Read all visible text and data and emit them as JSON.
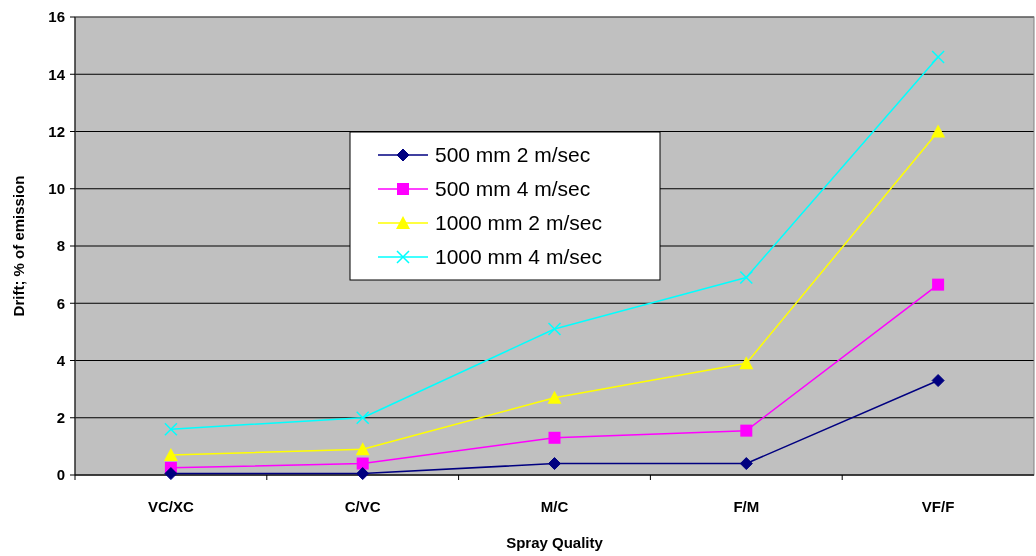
{
  "chart_data": {
    "type": "line",
    "xlabel": "Spray Quality",
    "ylabel": "Drift; % of emission",
    "categories": [
      "VC/XC",
      "C/VC",
      "M/C",
      "F/M",
      "VF/F"
    ],
    "ylim": [
      0,
      16
    ],
    "yticks": [
      0,
      2,
      4,
      6,
      8,
      10,
      12,
      14,
      16
    ],
    "grid": "y",
    "legend": "top",
    "series": [
      {
        "name": "500 mm 2 m/sec",
        "color": "#000080",
        "marker": "diamond",
        "values": [
          0.05,
          0.05,
          0.4,
          0.4,
          3.3
        ]
      },
      {
        "name": "500 mm 4 m/sec",
        "color": "#ff00ff",
        "marker": "square",
        "values": [
          0.25,
          0.4,
          1.3,
          1.55,
          6.65
        ]
      },
      {
        "name": "1000 mm 2 m/sec",
        "color": "#ffff00",
        "marker": "triangle",
        "values": [
          0.7,
          0.9,
          2.7,
          3.9,
          12.0
        ]
      },
      {
        "name": "1000 mm 4 m/sec",
        "color": "#00ffff",
        "marker": "cross",
        "values": [
          1.6,
          2.0,
          5.1,
          6.9,
          14.6
        ]
      }
    ]
  }
}
